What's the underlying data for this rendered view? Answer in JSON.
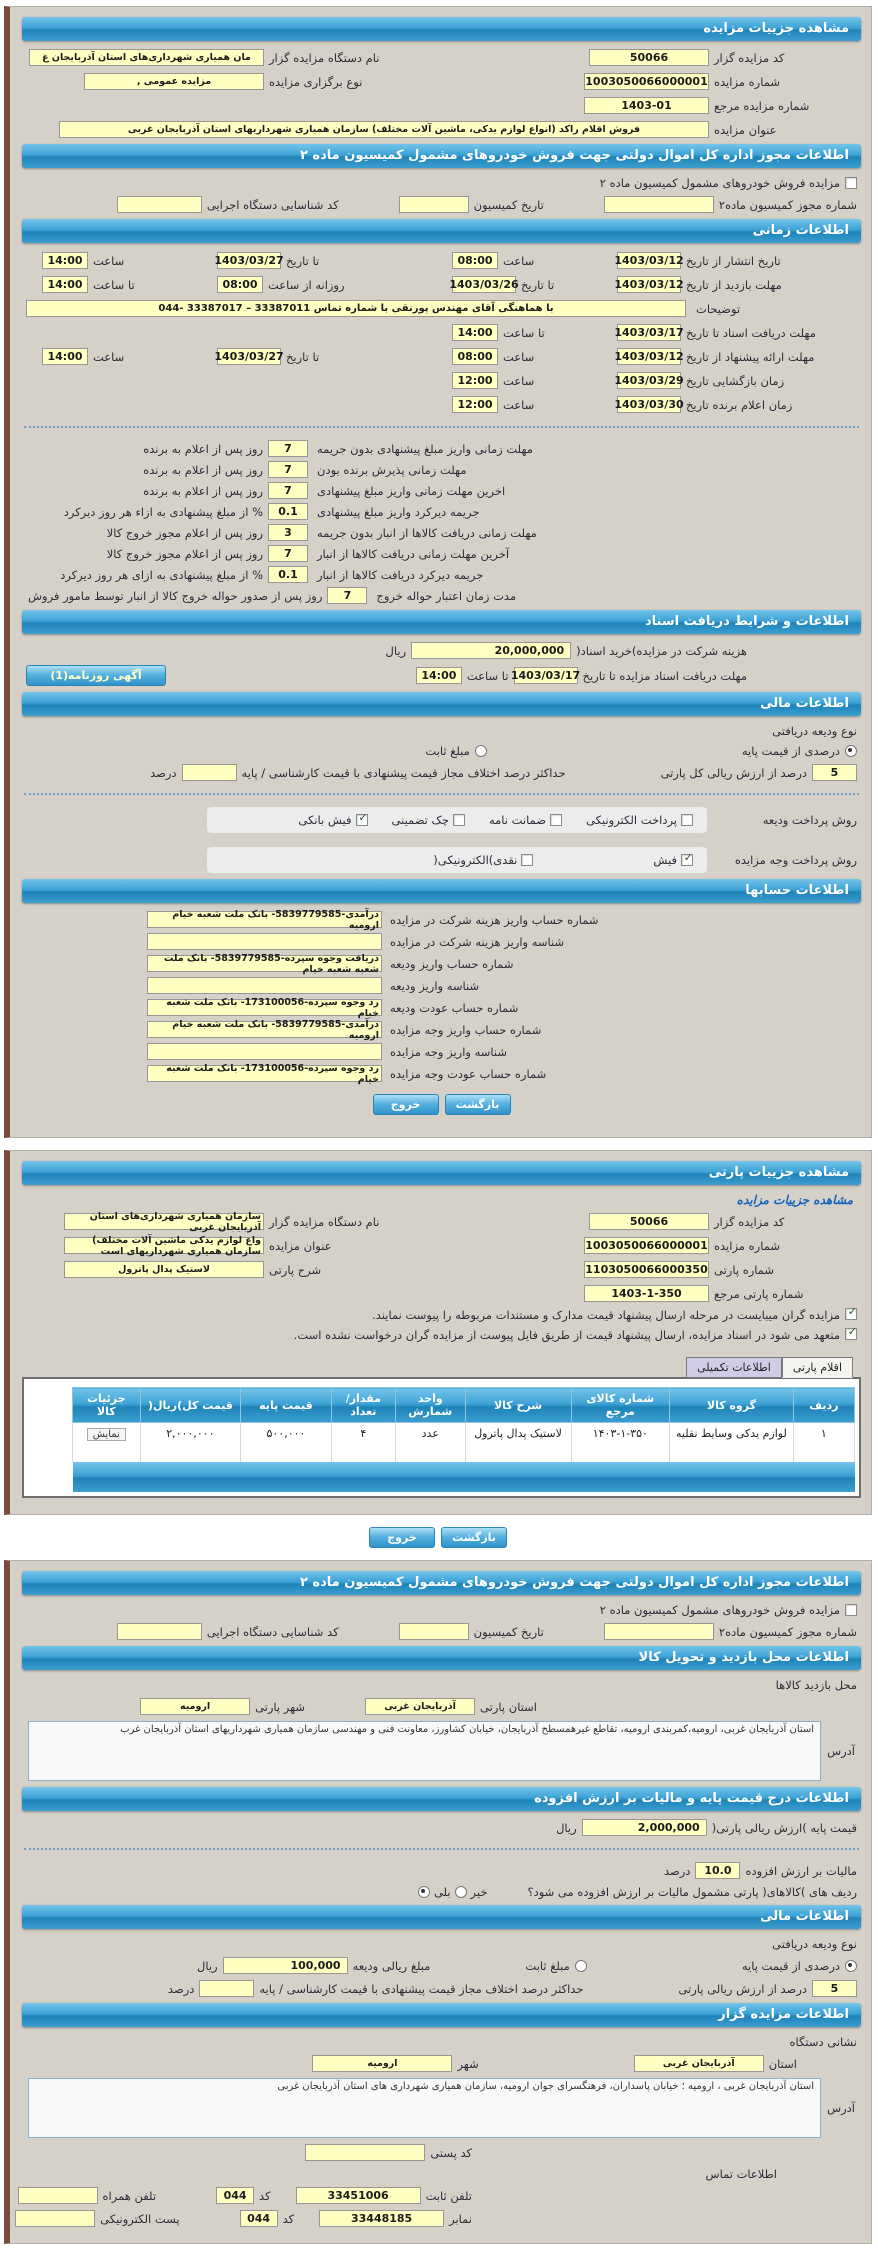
{
  "buttons": {
    "back": "بازگشت",
    "exit": "خروج",
    "newspaper_ad": "آگهی روزنامه(1)"
  },
  "p1": {
    "title": "مشاهده جزییات مزایده",
    "bidder_code_label": "کد مزایده گزار",
    "bidder_code": "50066",
    "agency_label": "نام دستگاه مزایده گزار",
    "agency": "مان همیاری شهرداری‌های استان آذربایجان غ",
    "auction_no_label": "شماره مزایده",
    "auction_no": "1003050066000001",
    "type_label": "نوع برگزاری مزایده",
    "type_value": "مزایده عمومی ,",
    "ref_label": "شماره مزایده مرجع",
    "ref_value": "1403-01",
    "subject_label": "عنوان مزایده",
    "subject_value": "فروش اقلام راکد (انواع لوازم یدکی، ماشین آلات مختلف) سازمان همیاری شهرداریهای استان آذربایجان غربی"
  },
  "permit": {
    "header": "اطلاعات مجوز اداره کل اموال دولتی جهت فروش خودروهای مشمول کمیسیون ماده ۲",
    "checkbox_label": "مزایده فروش خودروهای مشمول کمیسیون ماده ۲",
    "no_label": "شماره مجوز کمیسیون ماده۲",
    "date_label": "تاریخ کمیسیون",
    "exec_label": "کد شناسایی دستگاه اجرایی",
    "no_value": "",
    "date_value": "",
    "exec_value": ""
  },
  "timing": {
    "header": "اطلاعات زمانی",
    "rows_a": [
      [
        {
          "l": "تاریخ انتشار از تاریخ",
          "v": "1403/03/12",
          "k": "date"
        },
        {
          "l": "ساعت",
          "v": "08:00",
          "k": "time"
        },
        {
          "l": "تا تاریخ",
          "v": "1403/03/27",
          "k": "date"
        },
        {
          "l": "ساعت",
          "v": "14:00",
          "k": "time"
        }
      ],
      [
        {
          "l": "مهلت بازدید از تاریخ",
          "v": "1403/03/12",
          "k": "date"
        },
        {
          "l": "تا تاریخ",
          "v": "1403/03/26",
          "k": "date"
        },
        {
          "l": "روزانه از ساعت",
          "v": "08:00",
          "k": "time"
        },
        {
          "l": "تا ساعت",
          "v": "14:00",
          "k": "time"
        }
      ]
    ],
    "desc_label": "توضیحات",
    "desc_value": "با هماهنگی آقای مهندس پورنقی با شماره تماس 33387011 – 33387017 -044",
    "rows_b": [
      [
        {
          "l": "مهلت دریافت اسناد تا تاریخ",
          "v": "1403/03/17",
          "k": "date"
        },
        {
          "l": "تا ساعت",
          "v": "14:00",
          "k": "time"
        },
        null,
        null
      ],
      [
        {
          "l": "مهلت ارائه پیشنهاد از تاریخ",
          "v": "1403/03/12",
          "k": "date"
        },
        {
          "l": "ساعت",
          "v": "08:00",
          "k": "time"
        },
        {
          "l": "تا تاریخ",
          "v": "1403/03/27",
          "k": "date"
        },
        {
          "l": "ساعت",
          "v": "14:00",
          "k": "time"
        }
      ],
      [
        {
          "l": "زمان بازگشایی  تاریخ",
          "v": "1403/03/29",
          "k": "date"
        },
        {
          "l": "ساعت",
          "v": "12:00",
          "k": "time"
        },
        null,
        null
      ],
      [
        {
          "l": "زمان اعلام برنده  تاریخ",
          "v": "1403/03/30",
          "k": "date"
        },
        {
          "l": "ساعت",
          "v": "12:00",
          "k": "time"
        },
        null,
        null
      ]
    ]
  },
  "deadlines": {
    "rows": [
      {
        "l": "مهلت زمانی واریز مبلغ پیشنهادی بدون جریمه",
        "v": "7",
        "s": "روز پس از اعلام به برنده"
      },
      {
        "l": "مهلت زمانی پذیرش برنده بودن",
        "v": "7",
        "s": "روز پس از اعلام به برنده"
      },
      {
        "l": "اخرین مهلت زمانی واریز مبلغ پیشنهادی",
        "v": "7",
        "s": "روز پس از اعلام به برنده"
      },
      {
        "l": "جریمه دیرکرد واریز مبلغ پیشنهادی",
        "v": "0.1",
        "s": "% از مبلغ پیشنهادی به ازاء هر روز دیرکرد"
      },
      {
        "l": "مهلت زمانی دریافت کالاها از انبار بدون جریمه",
        "v": "3",
        "s": "روز پس از اعلام مجوز خروج کالا"
      },
      {
        "l": "آخرین مهلت زمانی دریافت کالاها از انبار",
        "v": "7",
        "s": "روز پس از اعلام مجوز خروج کالا"
      },
      {
        "l": "جریمه دیرکرد دریافت کالاها از انبار",
        "v": "0.1",
        "s": "% از مبلغ پیشنهادی به ازای هر روز دیرکرد"
      },
      {
        "l": "مدت زمان اعتبار حواله خروج",
        "v": "7",
        "s": "روز پس از صدور حواله خروج کالا از انبار توسط مامور فروش"
      }
    ]
  },
  "docs": {
    "header": "اطلاعات و شرایط دریافت اسناد",
    "fee_label": "هزینه شرکت در مزایده)خرید اسناد(",
    "fee_value": "20,000,000",
    "rial": "ریال",
    "deadline_label": "مهلت دریافت اسناد مزایده تا تاریخ",
    "deadline_date": "1403/03/17",
    "to_hour_label": "تا ساعت",
    "deadline_time": "14:00"
  },
  "fin1": {
    "header": "اطلاعات مالی",
    "deposit_type_label": "نوع ودیعه دریافتی",
    "pct_option": "درصدی از قیمت پایه",
    "fixed_option": "مبلغ ثابت",
    "pct_value": "5",
    "pct_suffix": "درصد از ارزش ریالی کل پارتی",
    "maxdiff_label": "حداکثر درصد اختلاف مجاز قیمت پیشنهادی با قیمت کارشناسی / پایه",
    "maxdiff_value": "",
    "pct_unit": "درصد",
    "dep_method_label": "روش پرداخت ودیعه",
    "dep_methods": [
      {
        "label": "پرداخت الکترونیکی",
        "checked": false
      },
      {
        "label": "ضمانت نامه",
        "checked": false
      },
      {
        "label": "چک تضمینی",
        "checked": false
      },
      {
        "label": "فیش بانکی",
        "checked": true
      }
    ],
    "pay_method_label": "روش پرداخت وجه مزایده",
    "pay_methods": [
      {
        "label": "فیش",
        "checked": true
      },
      {
        "label": "نقدی)الکترونیکی(",
        "checked": false
      }
    ]
  },
  "accounts": {
    "header": "اطلاعات حسابها",
    "rows": [
      {
        "l": "شماره حساب واریز هزینه شرکت در مزایده",
        "v": "درآمدی-5839779585- بانک ملت شعبه خیام ارومیه"
      },
      {
        "l": "شناسه واریز هزینه شرکت در مزایده",
        "v": ""
      },
      {
        "l": "شماره حساب واریز ودیعه",
        "v": "دریافت وجوه سپرده-5839779585- بانک ملت شعبه شعبه خیام"
      },
      {
        "l": "شناسه واریز ودیعه",
        "v": ""
      },
      {
        "l": "شماره حساب عودت ودیعه",
        "v": "رد وجوه سپرده-173100056- بانک ملت شعبه خیام"
      },
      {
        "l": "شماره حساب واریز وجه مزایده",
        "v": "درآمدی-5839779585- بانک ملت شعبه خیام ارومیه"
      },
      {
        "l": "شناسه واریز وجه مزایده",
        "v": ""
      },
      {
        "l": "شماره حساب عودت وجه مزایده",
        "v": "رد وجوه سپرده-173100056- بانک ملت شعبه خیام"
      }
    ]
  },
  "p2": {
    "title": "مشاهده جزییات پارتی",
    "subtitle": "مشاهده جزییات مزایده",
    "bidder_code_label": "کد مزایده گزار",
    "bidder_code": "50066",
    "agency_label": "نام دستگاه مزایده گزار",
    "agency": "سازمان همیاری شهرداری‌های استان آذربایجان غربی",
    "auction_no_label": "شماره مزایده",
    "auction_no": "1003050066000001",
    "subject_label": "عنوان مزایده",
    "subject": "واع لوازم یدکی ماشین آلات مختلف) سازمان همیاری شهرداریهای است",
    "party_no_label": "شماره پارتی",
    "party_no": "1103050066000350",
    "party_desc_label": "شرح پارتی",
    "party_desc": "لاستیک پدال پاترول",
    "party_ref_label": "شماره پارتی مرجع",
    "party_ref": "1403-1-350",
    "check1": "مزایده گران میبایست در مرحله ارسال پیشنهاد قیمت مدارک و مستندات مربوطه را پیوست نمایند.",
    "check2": "متعهد می شود در اسناد مزایده، ارسال پیشنهاد قیمت از طریق فایل پیوست از مزایده گران درخواست نشده است.",
    "tab_items": "اقلام پارتی",
    "tab_extra": "اطلاعات تکمیلی",
    "table": {
      "columns": [
        "ردیف",
        "گروه کالا",
        "شماره کالای مرجع",
        "شرح کالا",
        "واحد شمارش",
        "مقدار/ تعداد",
        "قیمت پایه",
        "قیمت کل)ریال(",
        "جزئیات کالا"
      ],
      "rows": [
        {
          "cells": [
            "۱",
            "لوازم یدکی وسایط نقلیه",
            "۱۴۰۳-۱-۳۵۰",
            "لاستیک پدال پاترول",
            "عدد",
            "۴",
            "۵۰۰,۰۰۰",
            "۲,۰۰۰,۰۰۰"
          ]
        }
      ],
      "detail_label": "نمایش"
    }
  },
  "p3": {
    "visit": {
      "header": "اطلاعات محل بازدید و تحویل کالا",
      "place_label": "محل بازدید کالاها",
      "province_label": "استان پارتی",
      "province": "آذربایجان غربی",
      "city_label": "شهر پارتی",
      "city": "ارومیه",
      "address_label": "آدرس",
      "address": "استان آذربایجان غربی، ارومیه،کمربندی ارومیه، تقاطع غیرهمسطح آذربایجان، خیابان کشاورز، معاونت فنی و مهندسی سازمان همیاری شهرداریهای استان آذربایجان غرب"
    },
    "price": {
      "header": "اطلاعات درج قیمت پایه و مالیات بر ارزش افزوده",
      "base_label": "قیمت پایه )ارزش ریالی پارتی(",
      "base_value": "2,000,000",
      "rial": "ریال",
      "vat_label": "مالیات بر ارزش افزوده",
      "vat_value": "10.0",
      "pct": "درصد",
      "vat_q": "ردیف های )کالاهای( پارتی مشمول مالیات بر ارزش افزوده می شود؟",
      "yes": "بلی",
      "no": "خیر"
    },
    "fin": {
      "header": "اطلاعات مالی",
      "deposit_type_label": "نوع ودیعه دریافتی",
      "pct_option": "درصدی از قیمت پایه",
      "fixed_option": "مبلغ ثابت",
      "amount_label": "مبلغ ریالی ودیعه",
      "amount": "100,000",
      "rial": "ریال",
      "pct_value": "5",
      "pct_suffix": "درصد از ارزش ریالی پارتی",
      "maxdiff_label": "حداکثر درصد اختلاف مجاز قیمت پیشنهادی با قیمت کارشناسی / پایه",
      "maxdiff_value": "",
      "pct_unit": "درصد"
    },
    "org": {
      "header": "اطلاعات مزایده گزار",
      "addr_title": "نشانی دستگاه",
      "province_label": "استان",
      "province": "آذربایجان غربی",
      "city_label": "شهر",
      "city": "ارومیه",
      "address_label": "آدرس",
      "address": "استان آذربایجان غربی ، ارومیه ؛ خیابان پاسداران، فرهنگسرای جوان ارومیه، سازمان همیاری شهرداری های استان آذربایجان غربی",
      "postal_label": "کد پستی",
      "postal": "",
      "contact_title": "اطلاعات تماس",
      "phone_label": "تلفن ثابت",
      "phone": "33451006",
      "code_label": "کد",
      "phone_code": "044",
      "mobile_label": "تلفن همراه",
      "mobile": "",
      "fax_label": "نمابر",
      "fax": "33448185",
      "fax_code": "044",
      "email_label": "پست الکترونیکی",
      "email": ""
    }
  }
}
